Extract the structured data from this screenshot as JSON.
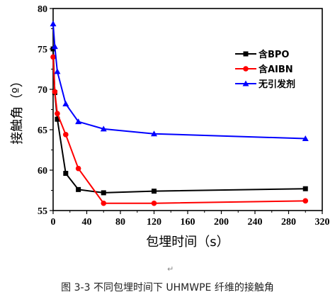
{
  "chart_data": {
    "type": "line",
    "xlabel": "包埋时间（s）",
    "ylabel": "接触角（º）",
    "xlim": [
      0,
      320
    ],
    "ylim": [
      55,
      80
    ],
    "xticks": [
      0,
      40,
      80,
      120,
      160,
      200,
      240,
      280,
      320
    ],
    "yticks": [
      55,
      60,
      65,
      70,
      75,
      80
    ],
    "legend_position": "top-right",
    "grid": false,
    "series": [
      {
        "name": "含BPO",
        "color": "#000000",
        "marker": "square",
        "x": [
          0,
          2,
          5,
          15,
          30,
          60,
          120,
          300
        ],
        "y": [
          75.0,
          69.6,
          66.3,
          59.6,
          57.6,
          57.2,
          57.4,
          57.7
        ]
      },
      {
        "name": "含AIBN",
        "color": "#ff0000",
        "marker": "circle",
        "x": [
          0,
          2,
          5,
          15,
          30,
          60,
          120,
          300
        ],
        "y": [
          74.0,
          69.7,
          67.0,
          64.4,
          60.2,
          55.9,
          55.9,
          56.2
        ]
      },
      {
        "name": "无引发剂",
        "color": "#0000ff",
        "marker": "triangle",
        "x": [
          0,
          2,
          5,
          15,
          30,
          60,
          120,
          300
        ],
        "y": [
          78.1,
          75.3,
          72.2,
          68.2,
          66.0,
          65.1,
          64.5,
          63.9
        ]
      }
    ]
  },
  "caption": "图 3-3  不同包埋时间下 UHMWPE 纤维的接触角",
  "paragraph_mark": "↵"
}
